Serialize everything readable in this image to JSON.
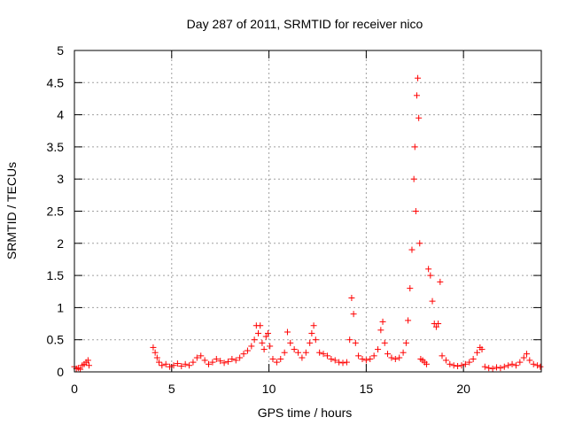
{
  "chart_data": {
    "type": "scatter",
    "title": "Day 287 of 2011, SRMTID for receiver nico",
    "xlabel": "GPS time / hours",
    "ylabel": "SRMTID / TECUs",
    "xlim": [
      0,
      24
    ],
    "ylim": [
      0,
      5
    ],
    "xticks": [
      0,
      5,
      10,
      15,
      20
    ],
    "yticks": [
      0,
      0.5,
      1,
      1.5,
      2,
      2.5,
      3,
      3.5,
      4,
      4.5,
      5
    ],
    "xtick_labels": [
      "0",
      "5",
      "10",
      "15",
      "20"
    ],
    "ytick_labels": [
      "0",
      "0.5",
      "1",
      "1.5",
      "2",
      "2.5",
      "3",
      "3.5",
      "4",
      "4.5",
      "5"
    ],
    "grid": true,
    "marker": "plus",
    "color": "#ff0000",
    "series": [
      {
        "points": [
          [
            0.0,
            0.08
          ],
          [
            0.1,
            0.05
          ],
          [
            0.2,
            0.06
          ],
          [
            0.3,
            0.04
          ],
          [
            0.4,
            0.1
          ],
          [
            0.5,
            0.12
          ],
          [
            0.6,
            0.15
          ],
          [
            0.7,
            0.18
          ],
          [
            0.75,
            0.1
          ],
          [
            4.05,
            0.38
          ],
          [
            4.15,
            0.3
          ],
          [
            4.25,
            0.22
          ],
          [
            4.35,
            0.15
          ],
          [
            4.5,
            0.1
          ],
          [
            4.7,
            0.12
          ],
          [
            4.9,
            0.08
          ],
          [
            5.1,
            0.1
          ],
          [
            5.3,
            0.13
          ],
          [
            5.5,
            0.09
          ],
          [
            5.7,
            0.12
          ],
          [
            5.9,
            0.1
          ],
          [
            6.1,
            0.15
          ],
          [
            6.3,
            0.22
          ],
          [
            6.5,
            0.25
          ],
          [
            6.7,
            0.18
          ],
          [
            6.9,
            0.12
          ],
          [
            7.1,
            0.15
          ],
          [
            7.3,
            0.2
          ],
          [
            7.5,
            0.17
          ],
          [
            7.7,
            0.14
          ],
          [
            7.9,
            0.16
          ],
          [
            8.1,
            0.2
          ],
          [
            8.3,
            0.18
          ],
          [
            8.5,
            0.22
          ],
          [
            8.7,
            0.28
          ],
          [
            8.9,
            0.33
          ],
          [
            9.1,
            0.4
          ],
          [
            9.25,
            0.5
          ],
          [
            9.35,
            0.72
          ],
          [
            9.45,
            0.6
          ],
          [
            9.55,
            0.72
          ],
          [
            9.65,
            0.45
          ],
          [
            9.75,
            0.35
          ],
          [
            9.85,
            0.55
          ],
          [
            9.95,
            0.6
          ],
          [
            10.05,
            0.4
          ],
          [
            10.2,
            0.2
          ],
          [
            10.4,
            0.15
          ],
          [
            10.6,
            0.2
          ],
          [
            10.8,
            0.3
          ],
          [
            10.95,
            0.62
          ],
          [
            11.1,
            0.45
          ],
          [
            11.3,
            0.35
          ],
          [
            11.5,
            0.3
          ],
          [
            11.7,
            0.22
          ],
          [
            11.9,
            0.3
          ],
          [
            12.1,
            0.45
          ],
          [
            12.2,
            0.6
          ],
          [
            12.3,
            0.72
          ],
          [
            12.4,
            0.5
          ],
          [
            12.6,
            0.3
          ],
          [
            12.8,
            0.28
          ],
          [
            13.0,
            0.25
          ],
          [
            13.2,
            0.2
          ],
          [
            13.4,
            0.18
          ],
          [
            13.6,
            0.15
          ],
          [
            13.8,
            0.14
          ],
          [
            14.0,
            0.15
          ],
          [
            14.15,
            0.5
          ],
          [
            14.25,
            1.15
          ],
          [
            14.35,
            0.9
          ],
          [
            14.45,
            0.45
          ],
          [
            14.6,
            0.25
          ],
          [
            14.8,
            0.2
          ],
          [
            15.0,
            0.18
          ],
          [
            15.2,
            0.2
          ],
          [
            15.4,
            0.25
          ],
          [
            15.6,
            0.35
          ],
          [
            15.75,
            0.65
          ],
          [
            15.85,
            0.78
          ],
          [
            15.95,
            0.45
          ],
          [
            16.1,
            0.28
          ],
          [
            16.3,
            0.22
          ],
          [
            16.5,
            0.2
          ],
          [
            16.7,
            0.22
          ],
          [
            16.9,
            0.3
          ],
          [
            17.05,
            0.45
          ],
          [
            17.15,
            0.8
          ],
          [
            17.25,
            1.3
          ],
          [
            17.35,
            1.9
          ],
          [
            17.45,
            3.0
          ],
          [
            17.5,
            3.5
          ],
          [
            17.55,
            2.5
          ],
          [
            17.6,
            4.3
          ],
          [
            17.65,
            4.57
          ],
          [
            17.7,
            3.95
          ],
          [
            17.75,
            2.0
          ],
          [
            17.8,
            0.2
          ],
          [
            17.9,
            0.18
          ],
          [
            18.0,
            0.15
          ],
          [
            18.1,
            0.12
          ],
          [
            18.2,
            1.6
          ],
          [
            18.3,
            1.5
          ],
          [
            18.4,
            1.1
          ],
          [
            18.5,
            0.75
          ],
          [
            18.6,
            0.7
          ],
          [
            18.7,
            0.75
          ],
          [
            18.8,
            1.4
          ],
          [
            18.9,
            0.25
          ],
          [
            19.1,
            0.18
          ],
          [
            19.3,
            0.12
          ],
          [
            19.5,
            0.1
          ],
          [
            19.7,
            0.09
          ],
          [
            19.9,
            0.1
          ],
          [
            20.1,
            0.12
          ],
          [
            20.3,
            0.15
          ],
          [
            20.5,
            0.2
          ],
          [
            20.7,
            0.3
          ],
          [
            20.85,
            0.38
          ],
          [
            20.95,
            0.35
          ],
          [
            21.1,
            0.08
          ],
          [
            21.3,
            0.06
          ],
          [
            21.5,
            0.05
          ],
          [
            21.7,
            0.07
          ],
          [
            21.9,
            0.06
          ],
          [
            22.1,
            0.08
          ],
          [
            22.3,
            0.1
          ],
          [
            22.5,
            0.12
          ],
          [
            22.7,
            0.1
          ],
          [
            22.9,
            0.15
          ],
          [
            23.1,
            0.22
          ],
          [
            23.25,
            0.28
          ],
          [
            23.4,
            0.18
          ],
          [
            23.6,
            0.12
          ],
          [
            23.8,
            0.1
          ],
          [
            23.95,
            0.08
          ]
        ]
      }
    ]
  }
}
